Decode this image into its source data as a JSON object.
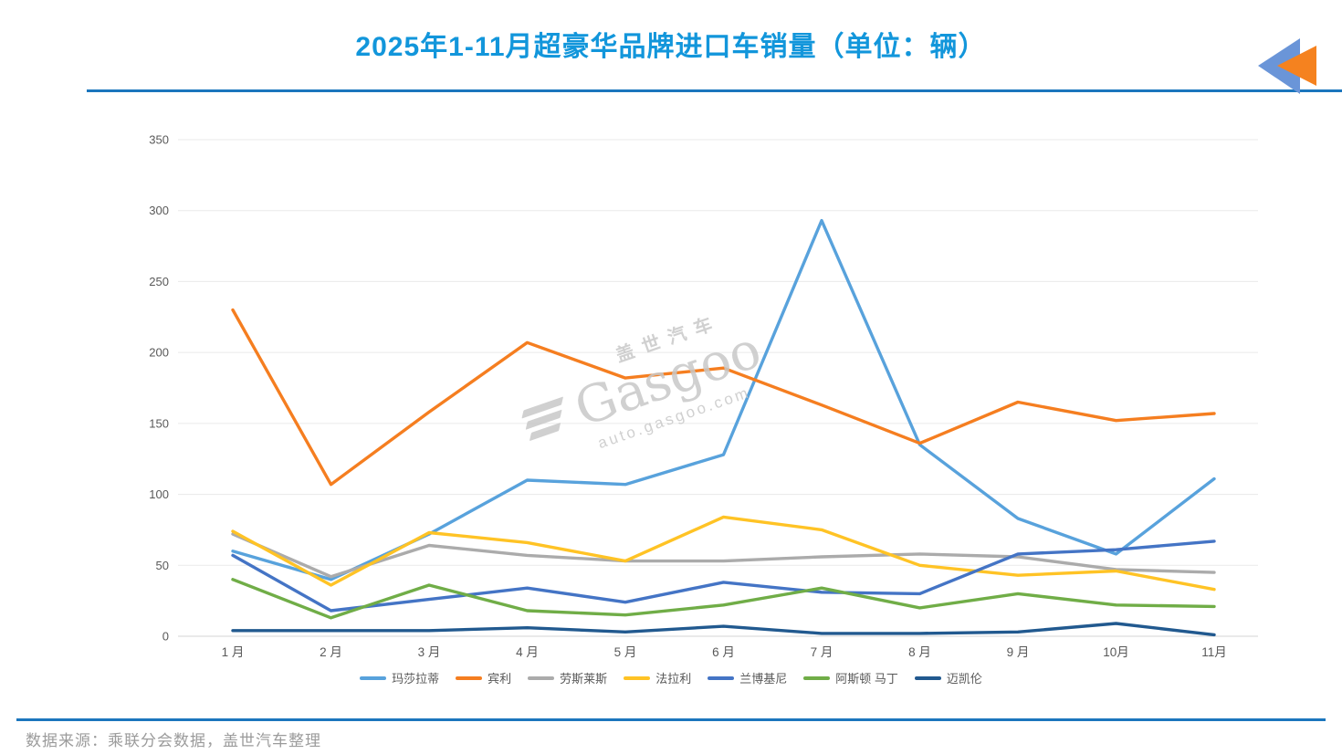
{
  "watermark": {
    "cn": "盖世汽车",
    "brand": "Gasgoo",
    "url": "auto.gasgoo.com"
  },
  "footer": {
    "source": "数据来源：乘联分会数据，盖世汽车整理"
  },
  "colors": {
    "title": "#1296db",
    "divider": "#1b76bd",
    "logo_blue": "#6a95d8",
    "logo_orange": "#f5821f",
    "grid": "#eaeaea",
    "baseline": "#d6d6d6",
    "axis_text": "#595959",
    "watermark": "#c8c8c8",
    "footer_text": "#9b9b9b"
  },
  "chart_data": {
    "type": "line",
    "title": "2025年1-11月超豪华品牌进口车销量（单位：辆）",
    "categories": [
      "1 月",
      "2 月",
      "3 月",
      "4 月",
      "5 月",
      "6 月",
      "7 月",
      "8 月",
      "9 月",
      "10月",
      "11月"
    ],
    "xlabel": "",
    "ylabel": "",
    "ylim": [
      0,
      350
    ],
    "ytick_step": 50,
    "grid": true,
    "legend_position": "bottom",
    "series": [
      {
        "name": "玛莎拉蒂",
        "color": "#58a2dc",
        "values": [
          60,
          40,
          72,
          110,
          107,
          128,
          293,
          135,
          83,
          58,
          111
        ]
      },
      {
        "name": "宾利",
        "color": "#f57e20",
        "values": [
          230,
          107,
          158,
          207,
          182,
          189,
          163,
          136,
          165,
          152,
          157
        ]
      },
      {
        "name": "劳斯莱斯",
        "color": "#ababab",
        "values": [
          72,
          42,
          64,
          57,
          53,
          53,
          56,
          58,
          56,
          47,
          45
        ]
      },
      {
        "name": "法拉利",
        "color": "#ffc325",
        "values": [
          74,
          36,
          73,
          66,
          53,
          84,
          75,
          50,
          43,
          46,
          33
        ]
      },
      {
        "name": "兰博基尼",
        "color": "#4474c5",
        "values": [
          57,
          18,
          26,
          34,
          24,
          38,
          31,
          30,
          58,
          61,
          67
        ]
      },
      {
        "name": "阿斯顿 马丁",
        "color": "#70ad47",
        "values": [
          40,
          13,
          36,
          18,
          15,
          22,
          34,
          20,
          30,
          22,
          21
        ]
      },
      {
        "name": "迈凯伦",
        "color": "#21598f",
        "values": [
          4,
          4,
          4,
          6,
          3,
          7,
          2,
          2,
          3,
          9,
          1
        ]
      }
    ]
  }
}
